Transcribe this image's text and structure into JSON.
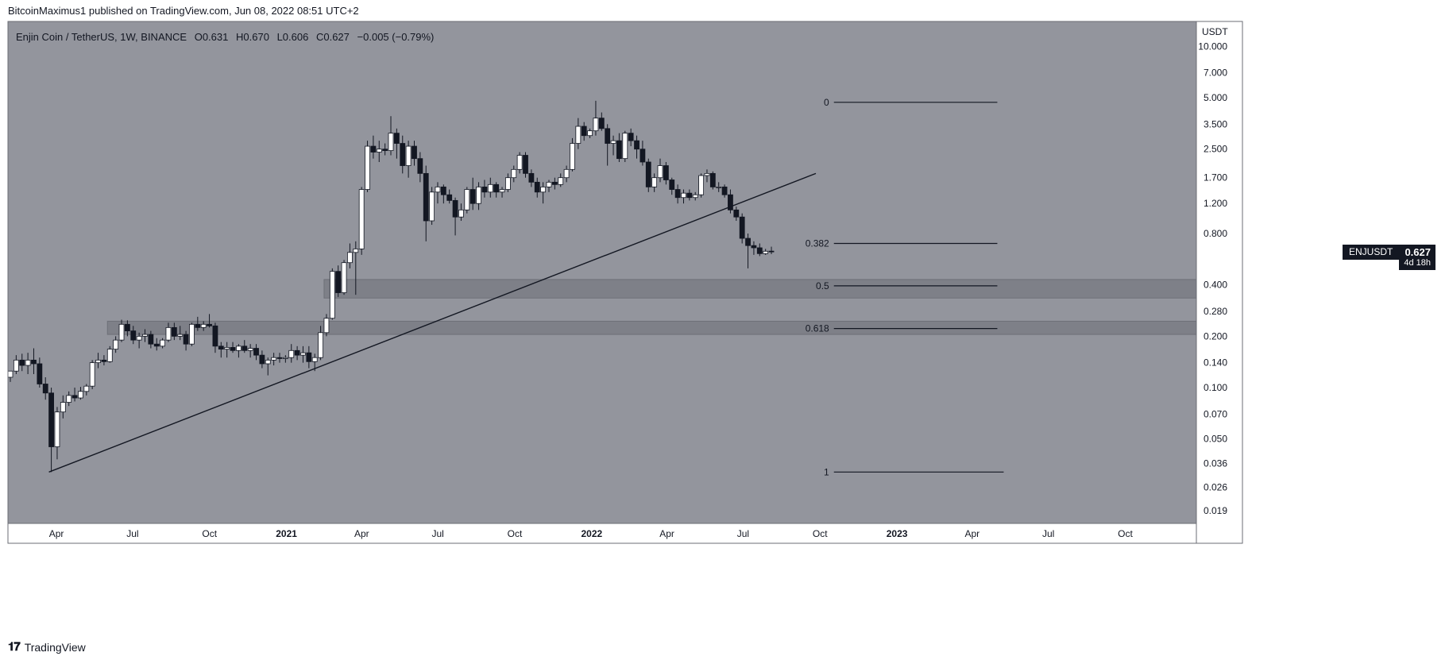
{
  "credit": "BitcoinMaximus1 published on TradingView.com, Jun 08, 2022 08:51 UTC+2",
  "footer_brand": "TradingView",
  "footer_logo_icon": "tradingview-logo-icon",
  "legend": {
    "symbol": "Enjin Coin / TetherUS, 1W, BINANCE",
    "o_label": "O",
    "o": "0.631",
    "h_label": "H",
    "h": "0.670",
    "l_label": "L",
    "l": "0.606",
    "c_label": "C",
    "c": "0.627",
    "change": "−0.005 (−0.79%)"
  },
  "price_tag": {
    "symbol": "ENJUSDT",
    "price": "0.627",
    "countdown": "4d 18h"
  },
  "colors": {
    "background": "#93959d",
    "bull": "#ffffff",
    "bear": "#131722",
    "zone": "#7e8088",
    "line": "#131722"
  },
  "chart_data": {
    "type": "candlestick",
    "axis_currency": "USDT",
    "y_scale": "log",
    "ylim": [
      0.016,
      14
    ],
    "y_ticks": [
      "10.000",
      "7.000",
      "5.000",
      "3.500",
      "2.500",
      "1.700",
      "1.200",
      "0.800",
      "0.400",
      "0.280",
      "0.200",
      "0.140",
      "0.100",
      "0.070",
      "0.050",
      "0.036",
      "0.026",
      "0.019"
    ],
    "x_range": [
      "2020-02-03",
      "2023-12-25"
    ],
    "x_ticks": [
      {
        "date": "2020-04-01",
        "label": "Apr"
      },
      {
        "date": "2020-07-01",
        "label": "Jul"
      },
      {
        "date": "2020-10-01",
        "label": "Oct"
      },
      {
        "date": "2021-01-01",
        "label": "2021",
        "bold": true
      },
      {
        "date": "2021-04-01",
        "label": "Apr"
      },
      {
        "date": "2021-07-01",
        "label": "Jul"
      },
      {
        "date": "2021-10-01",
        "label": "Oct"
      },
      {
        "date": "2022-01-01",
        "label": "2022",
        "bold": true
      },
      {
        "date": "2022-04-01",
        "label": "Apr"
      },
      {
        "date": "2022-07-01",
        "label": "Jul"
      },
      {
        "date": "2022-10-01",
        "label": "Oct"
      },
      {
        "date": "2023-01-01",
        "label": "2023",
        "bold": true
      },
      {
        "date": "2023-04-01",
        "label": "Apr"
      },
      {
        "date": "2023-07-01",
        "label": "Jul"
      },
      {
        "date": "2023-10-01",
        "label": "Oct"
      }
    ],
    "candles": [
      {
        "t": "2020-02-03",
        "o": 0.115,
        "h": 0.125,
        "l": 0.108,
        "c": 0.125
      },
      {
        "t": "2020-02-10",
        "o": 0.125,
        "h": 0.155,
        "l": 0.12,
        "c": 0.145
      },
      {
        "t": "2020-02-17",
        "o": 0.145,
        "h": 0.158,
        "l": 0.125,
        "c": 0.135
      },
      {
        "t": "2020-02-24",
        "o": 0.135,
        "h": 0.16,
        "l": 0.12,
        "c": 0.145
      },
      {
        "t": "2020-03-02",
        "o": 0.145,
        "h": 0.17,
        "l": 0.12,
        "c": 0.138
      },
      {
        "t": "2020-03-09",
        "o": 0.138,
        "h": 0.15,
        "l": 0.1,
        "c": 0.105
      },
      {
        "t": "2020-03-16",
        "o": 0.105,
        "h": 0.115,
        "l": 0.085,
        "c": 0.093
      },
      {
        "t": "2020-03-23",
        "o": 0.093,
        "h": 0.1,
        "l": 0.032,
        "c": 0.045
      },
      {
        "t": "2020-03-30",
        "o": 0.045,
        "h": 0.077,
        "l": 0.038,
        "c": 0.072
      },
      {
        "t": "2020-04-06",
        "o": 0.072,
        "h": 0.09,
        "l": 0.066,
        "c": 0.082
      },
      {
        "t": "2020-04-13",
        "o": 0.082,
        "h": 0.095,
        "l": 0.078,
        "c": 0.09
      },
      {
        "t": "2020-04-20",
        "o": 0.09,
        "h": 0.1,
        "l": 0.083,
        "c": 0.087
      },
      {
        "t": "2020-04-27",
        "o": 0.087,
        "h": 0.101,
        "l": 0.085,
        "c": 0.095
      },
      {
        "t": "2020-05-04",
        "o": 0.095,
        "h": 0.105,
        "l": 0.09,
        "c": 0.102
      },
      {
        "t": "2020-05-11",
        "o": 0.102,
        "h": 0.145,
        "l": 0.098,
        "c": 0.14
      },
      {
        "t": "2020-05-18",
        "o": 0.14,
        "h": 0.16,
        "l": 0.13,
        "c": 0.145
      },
      {
        "t": "2020-05-25",
        "o": 0.145,
        "h": 0.155,
        "l": 0.135,
        "c": 0.142
      },
      {
        "t": "2020-06-01",
        "o": 0.142,
        "h": 0.175,
        "l": 0.14,
        "c": 0.168
      },
      {
        "t": "2020-06-08",
        "o": 0.168,
        "h": 0.2,
        "l": 0.16,
        "c": 0.19
      },
      {
        "t": "2020-06-15",
        "o": 0.19,
        "h": 0.25,
        "l": 0.185,
        "c": 0.235
      },
      {
        "t": "2020-06-22",
        "o": 0.235,
        "h": 0.248,
        "l": 0.2,
        "c": 0.215
      },
      {
        "t": "2020-06-29",
        "o": 0.215,
        "h": 0.23,
        "l": 0.18,
        "c": 0.19
      },
      {
        "t": "2020-07-06",
        "o": 0.19,
        "h": 0.21,
        "l": 0.17,
        "c": 0.2
      },
      {
        "t": "2020-07-13",
        "o": 0.2,
        "h": 0.22,
        "l": 0.185,
        "c": 0.205
      },
      {
        "t": "2020-07-20",
        "o": 0.205,
        "h": 0.215,
        "l": 0.17,
        "c": 0.18
      },
      {
        "t": "2020-07-27",
        "o": 0.18,
        "h": 0.195,
        "l": 0.165,
        "c": 0.175
      },
      {
        "t": "2020-08-03",
        "o": 0.175,
        "h": 0.195,
        "l": 0.17,
        "c": 0.19
      },
      {
        "t": "2020-08-10",
        "o": 0.19,
        "h": 0.24,
        "l": 0.185,
        "c": 0.225
      },
      {
        "t": "2020-08-17",
        "o": 0.225,
        "h": 0.24,
        "l": 0.19,
        "c": 0.2
      },
      {
        "t": "2020-08-24",
        "o": 0.2,
        "h": 0.23,
        "l": 0.19,
        "c": 0.205
      },
      {
        "t": "2020-08-31",
        "o": 0.205,
        "h": 0.215,
        "l": 0.165,
        "c": 0.18
      },
      {
        "t": "2020-09-07",
        "o": 0.18,
        "h": 0.24,
        "l": 0.175,
        "c": 0.235
      },
      {
        "t": "2020-09-14",
        "o": 0.235,
        "h": 0.26,
        "l": 0.215,
        "c": 0.225
      },
      {
        "t": "2020-09-21",
        "o": 0.225,
        "h": 0.245,
        "l": 0.215,
        "c": 0.235
      },
      {
        "t": "2020-09-28",
        "o": 0.235,
        "h": 0.27,
        "l": 0.225,
        "c": 0.23
      },
      {
        "t": "2020-10-05",
        "o": 0.23,
        "h": 0.24,
        "l": 0.16,
        "c": 0.175
      },
      {
        "t": "2020-10-12",
        "o": 0.175,
        "h": 0.185,
        "l": 0.15,
        "c": 0.168
      },
      {
        "t": "2020-10-19",
        "o": 0.168,
        "h": 0.185,
        "l": 0.15,
        "c": 0.172
      },
      {
        "t": "2020-10-26",
        "o": 0.172,
        "h": 0.185,
        "l": 0.16,
        "c": 0.165
      },
      {
        "t": "2020-11-02",
        "o": 0.165,
        "h": 0.18,
        "l": 0.15,
        "c": 0.175
      },
      {
        "t": "2020-11-09",
        "o": 0.175,
        "h": 0.19,
        "l": 0.16,
        "c": 0.165
      },
      {
        "t": "2020-11-16",
        "o": 0.165,
        "h": 0.18,
        "l": 0.15,
        "c": 0.17
      },
      {
        "t": "2020-11-23",
        "o": 0.17,
        "h": 0.18,
        "l": 0.145,
        "c": 0.155
      },
      {
        "t": "2020-11-30",
        "o": 0.155,
        "h": 0.165,
        "l": 0.13,
        "c": 0.138
      },
      {
        "t": "2020-12-07",
        "o": 0.138,
        "h": 0.15,
        "l": 0.118,
        "c": 0.145
      },
      {
        "t": "2020-12-14",
        "o": 0.145,
        "h": 0.16,
        "l": 0.135,
        "c": 0.15
      },
      {
        "t": "2020-12-21",
        "o": 0.15,
        "h": 0.16,
        "l": 0.14,
        "c": 0.148
      },
      {
        "t": "2020-12-28",
        "o": 0.148,
        "h": 0.155,
        "l": 0.14,
        "c": 0.15
      },
      {
        "t": "2021-01-04",
        "o": 0.15,
        "h": 0.18,
        "l": 0.14,
        "c": 0.165
      },
      {
        "t": "2021-01-11",
        "o": 0.165,
        "h": 0.175,
        "l": 0.145,
        "c": 0.155
      },
      {
        "t": "2021-01-18",
        "o": 0.155,
        "h": 0.175,
        "l": 0.14,
        "c": 0.16
      },
      {
        "t": "2021-01-25",
        "o": 0.16,
        "h": 0.175,
        "l": 0.13,
        "c": 0.142
      },
      {
        "t": "2021-02-01",
        "o": 0.142,
        "h": 0.158,
        "l": 0.125,
        "c": 0.15
      },
      {
        "t": "2021-02-08",
        "o": 0.15,
        "h": 0.23,
        "l": 0.145,
        "c": 0.21
      },
      {
        "t": "2021-02-15",
        "o": 0.21,
        "h": 0.27,
        "l": 0.2,
        "c": 0.255
      },
      {
        "t": "2021-02-22",
        "o": 0.255,
        "h": 0.5,
        "l": 0.25,
        "c": 0.48
      },
      {
        "t": "2021-03-01",
        "o": 0.48,
        "h": 0.52,
        "l": 0.34,
        "c": 0.36
      },
      {
        "t": "2021-03-08",
        "o": 0.36,
        "h": 0.56,
        "l": 0.35,
        "c": 0.54
      },
      {
        "t": "2021-03-15",
        "o": 0.54,
        "h": 0.7,
        "l": 0.5,
        "c": 0.62
      },
      {
        "t": "2021-03-22",
        "o": 0.62,
        "h": 0.72,
        "l": 0.35,
        "c": 0.65
      },
      {
        "t": "2021-03-29",
        "o": 0.65,
        "h": 1.5,
        "l": 0.6,
        "c": 1.45
      },
      {
        "t": "2021-04-05",
        "o": 1.45,
        "h": 2.8,
        "l": 1.4,
        "c": 2.6
      },
      {
        "t": "2021-04-12",
        "o": 2.6,
        "h": 3.0,
        "l": 2.2,
        "c": 2.4
      },
      {
        "t": "2021-04-19",
        "o": 2.4,
        "h": 2.8,
        "l": 2.1,
        "c": 2.5
      },
      {
        "t": "2021-04-26",
        "o": 2.5,
        "h": 2.7,
        "l": 2.3,
        "c": 2.45
      },
      {
        "t": "2021-05-03",
        "o": 2.45,
        "h": 3.9,
        "l": 2.3,
        "c": 3.1
      },
      {
        "t": "2021-05-10",
        "o": 3.1,
        "h": 3.3,
        "l": 2.2,
        "c": 2.7
      },
      {
        "t": "2021-05-17",
        "o": 2.7,
        "h": 3.0,
        "l": 1.8,
        "c": 2.0
      },
      {
        "t": "2021-05-24",
        "o": 2.0,
        "h": 2.8,
        "l": 1.7,
        "c": 2.6
      },
      {
        "t": "2021-05-31",
        "o": 2.6,
        "h": 2.8,
        "l": 2.0,
        "c": 2.2
      },
      {
        "t": "2021-06-07",
        "o": 2.2,
        "h": 2.4,
        "l": 1.6,
        "c": 1.8
      },
      {
        "t": "2021-06-14",
        "o": 1.8,
        "h": 2.0,
        "l": 0.72,
        "c": 0.95
      },
      {
        "t": "2021-06-21",
        "o": 0.95,
        "h": 1.5,
        "l": 0.9,
        "c": 1.4
      },
      {
        "t": "2021-06-28",
        "o": 1.4,
        "h": 1.6,
        "l": 1.2,
        "c": 1.5
      },
      {
        "t": "2021-07-05",
        "o": 1.5,
        "h": 1.55,
        "l": 1.2,
        "c": 1.35
      },
      {
        "t": "2021-07-12",
        "o": 1.35,
        "h": 1.45,
        "l": 1.2,
        "c": 1.25
      },
      {
        "t": "2021-07-19",
        "o": 1.25,
        "h": 1.3,
        "l": 0.78,
        "c": 1.0
      },
      {
        "t": "2021-07-26",
        "o": 1.0,
        "h": 1.2,
        "l": 0.95,
        "c": 1.1
      },
      {
        "t": "2021-08-02",
        "o": 1.1,
        "h": 1.5,
        "l": 1.05,
        "c": 1.45
      },
      {
        "t": "2021-08-09",
        "o": 1.45,
        "h": 1.7,
        "l": 1.1,
        "c": 1.2
      },
      {
        "t": "2021-08-16",
        "o": 1.2,
        "h": 1.6,
        "l": 1.1,
        "c": 1.5
      },
      {
        "t": "2021-08-23",
        "o": 1.5,
        "h": 1.65,
        "l": 1.3,
        "c": 1.4
      },
      {
        "t": "2021-08-30",
        "o": 1.4,
        "h": 1.7,
        "l": 1.3,
        "c": 1.55
      },
      {
        "t": "2021-09-06",
        "o": 1.55,
        "h": 1.6,
        "l": 1.3,
        "c": 1.4
      },
      {
        "t": "2021-09-13",
        "o": 1.4,
        "h": 1.5,
        "l": 1.3,
        "c": 1.45
      },
      {
        "t": "2021-09-20",
        "o": 1.45,
        "h": 1.8,
        "l": 1.4,
        "c": 1.7
      },
      {
        "t": "2021-09-27",
        "o": 1.7,
        "h": 2.0,
        "l": 1.6,
        "c": 1.9
      },
      {
        "t": "2021-10-04",
        "o": 1.9,
        "h": 2.4,
        "l": 1.8,
        "c": 2.3
      },
      {
        "t": "2021-10-11",
        "o": 2.3,
        "h": 2.4,
        "l": 1.7,
        "c": 1.8
      },
      {
        "t": "2021-10-18",
        "o": 1.8,
        "h": 1.9,
        "l": 1.5,
        "c": 1.6
      },
      {
        "t": "2021-10-25",
        "o": 1.6,
        "h": 1.7,
        "l": 1.3,
        "c": 1.4
      },
      {
        "t": "2021-11-01",
        "o": 1.4,
        "h": 1.6,
        "l": 1.2,
        "c": 1.5
      },
      {
        "t": "2021-11-08",
        "o": 1.5,
        "h": 1.65,
        "l": 1.4,
        "c": 1.6
      },
      {
        "t": "2021-11-15",
        "o": 1.6,
        "h": 1.7,
        "l": 1.45,
        "c": 1.55
      },
      {
        "t": "2021-11-22",
        "o": 1.55,
        "h": 1.8,
        "l": 1.5,
        "c": 1.7
      },
      {
        "t": "2021-11-29",
        "o": 1.7,
        "h": 2.0,
        "l": 1.6,
        "c": 1.9
      },
      {
        "t": "2021-12-06",
        "o": 1.9,
        "h": 2.9,
        "l": 1.85,
        "c": 2.7
      },
      {
        "t": "2021-12-13",
        "o": 2.7,
        "h": 3.8,
        "l": 2.5,
        "c": 3.4
      },
      {
        "t": "2021-12-20",
        "o": 3.4,
        "h": 3.6,
        "l": 2.8,
        "c": 3.0
      },
      {
        "t": "2021-12-27",
        "o": 3.0,
        "h": 3.3,
        "l": 2.9,
        "c": 3.2
      },
      {
        "t": "2022-01-03",
        "o": 3.2,
        "h": 4.8,
        "l": 3.0,
        "c": 3.8
      },
      {
        "t": "2022-01-10",
        "o": 3.8,
        "h": 4.1,
        "l": 3.2,
        "c": 3.3
      },
      {
        "t": "2022-01-17",
        "o": 3.3,
        "h": 3.5,
        "l": 2.0,
        "c": 2.7
      },
      {
        "t": "2022-01-24",
        "o": 2.7,
        "h": 3.0,
        "l": 2.3,
        "c": 2.8
      },
      {
        "t": "2022-01-31",
        "o": 2.8,
        "h": 3.1,
        "l": 2.1,
        "c": 2.2
      },
      {
        "t": "2022-02-07",
        "o": 2.2,
        "h": 3.2,
        "l": 2.1,
        "c": 3.1
      },
      {
        "t": "2022-02-14",
        "o": 3.1,
        "h": 3.3,
        "l": 2.6,
        "c": 2.8
      },
      {
        "t": "2022-02-21",
        "o": 2.8,
        "h": 3.0,
        "l": 2.2,
        "c": 2.5
      },
      {
        "t": "2022-02-28",
        "o": 2.5,
        "h": 2.8,
        "l": 2.0,
        "c": 2.1
      },
      {
        "t": "2022-03-07",
        "o": 2.1,
        "h": 2.2,
        "l": 1.4,
        "c": 1.5
      },
      {
        "t": "2022-03-14",
        "o": 1.5,
        "h": 1.8,
        "l": 1.4,
        "c": 1.7
      },
      {
        "t": "2022-03-21",
        "o": 1.7,
        "h": 2.2,
        "l": 1.6,
        "c": 2.0
      },
      {
        "t": "2022-03-28",
        "o": 2.0,
        "h": 2.1,
        "l": 1.55,
        "c": 1.65
      },
      {
        "t": "2022-04-04",
        "o": 1.65,
        "h": 1.7,
        "l": 1.35,
        "c": 1.45
      },
      {
        "t": "2022-04-11",
        "o": 1.45,
        "h": 1.55,
        "l": 1.2,
        "c": 1.3
      },
      {
        "t": "2022-04-18",
        "o": 1.3,
        "h": 1.45,
        "l": 1.2,
        "c": 1.38
      },
      {
        "t": "2022-04-25",
        "o": 1.38,
        "h": 1.45,
        "l": 1.25,
        "c": 1.3
      },
      {
        "t": "2022-05-02",
        "o": 1.3,
        "h": 1.4,
        "l": 1.25,
        "c": 1.35
      },
      {
        "t": "2022-05-09",
        "o": 1.35,
        "h": 1.8,
        "l": 1.3,
        "c": 1.75
      },
      {
        "t": "2022-05-16",
        "o": 1.75,
        "h": 1.9,
        "l": 1.6,
        "c": 1.8
      },
      {
        "t": "2022-05-23",
        "o": 1.8,
        "h": 1.85,
        "l": 1.45,
        "c": 1.5
      },
      {
        "t": "2022-05-30",
        "o": 1.5,
        "h": 1.6,
        "l": 1.4,
        "c": 1.5
      },
      {
        "t": "2022-06-06",
        "o": 1.5,
        "h": 1.55,
        "l": 1.3,
        "c": 1.35
      },
      {
        "t": "2022-06-13",
        "o": 1.35,
        "h": 1.45,
        "l": 1.05,
        "c": 1.1
      },
      {
        "t": "2022-06-20",
        "o": 1.1,
        "h": 1.15,
        "l": 0.95,
        "c": 1.0
      },
      {
        "t": "2022-06-27",
        "o": 1.0,
        "h": 1.05,
        "l": 0.7,
        "c": 0.75
      },
      {
        "t": "2022-07-04",
        "o": 0.75,
        "h": 0.8,
        "l": 0.5,
        "c": 0.68
      },
      {
        "t": "2022-07-11",
        "o": 0.68,
        "h": 0.72,
        "l": 0.6,
        "c": 0.66
      },
      {
        "t": "2022-07-18",
        "o": 0.66,
        "h": 0.7,
        "l": 0.59,
        "c": 0.61
      },
      {
        "t": "2022-07-25",
        "o": 0.61,
        "h": 0.65,
        "l": 0.6,
        "c": 0.63
      },
      {
        "t": "2022-08-01",
        "o": 0.631,
        "h": 0.67,
        "l": 0.606,
        "c": 0.627
      }
    ],
    "trendline": [
      {
        "t": "2020-03-23",
        "v": 0.032
      },
      {
        "t": "2022-09-26",
        "v": 1.8
      }
    ],
    "zones": [
      {
        "t_start": "2021-02-15",
        "v_low": 0.335,
        "v_high": 0.43
      },
      {
        "t_start": "2020-06-01",
        "v_low": 0.205,
        "v_high": 0.245
      }
    ],
    "fib_levels": [
      {
        "label": "0",
        "value": 4.7,
        "t_start": "2022-10-10",
        "t_end": "2023-05-01"
      },
      {
        "label": "0.382",
        "value": 0.7,
        "t_start": "2022-10-10",
        "t_end": "2023-05-01"
      },
      {
        "label": "0.5",
        "value": 0.395,
        "t_start": "2022-10-10",
        "t_end": "2023-05-01"
      },
      {
        "label": "0.618",
        "value": 0.222,
        "t_start": "2022-10-10",
        "t_end": "2023-05-01"
      },
      {
        "label": "1",
        "value": 0.032,
        "t_start": "2022-10-10",
        "t_end": "2023-05-01"
      }
    ]
  }
}
